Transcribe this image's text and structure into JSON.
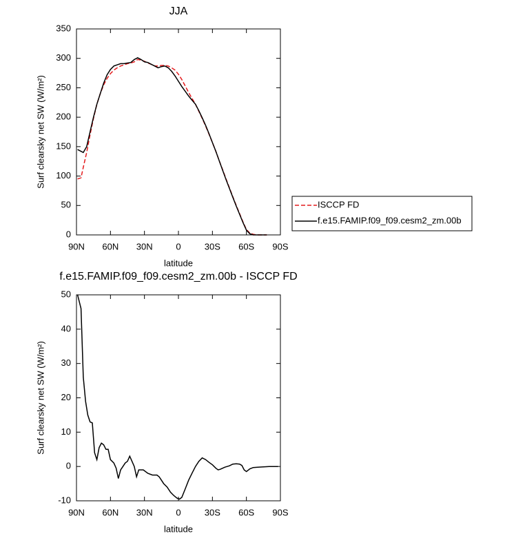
{
  "chart_data": [
    {
      "type": "line",
      "title": "JJA",
      "xlabel": "latitude",
      "ylabel": "Surf clearsky net SW (W/m²)",
      "x": [
        89,
        86,
        84,
        81,
        78,
        75,
        72,
        69,
        66,
        63,
        60,
        57,
        54,
        51,
        48,
        45,
        42,
        39,
        36,
        33,
        30,
        27,
        24,
        21,
        18,
        15,
        12,
        9,
        6,
        3,
        0,
        -3,
        -6,
        -9,
        -12,
        -15,
        -18,
        -21,
        -24,
        -27,
        -30,
        -33,
        -36,
        -39,
        -42,
        -45,
        -48,
        -51,
        -54,
        -57,
        -60,
        -63,
        -66,
        -69,
        -72,
        -75,
        -78
      ],
      "series": [
        {
          "name": "ISCCP FD",
          "color": "#e41a1c",
          "dash": "dashed",
          "values": [
            95,
            97,
            115,
            140,
            170,
            198,
            222,
            240,
            255,
            266,
            274,
            280,
            284,
            287,
            289,
            291,
            292,
            294,
            298,
            297,
            295,
            292,
            290,
            287,
            287,
            288,
            288,
            287,
            284,
            280,
            273,
            264,
            253,
            242,
            232,
            222,
            210,
            198,
            185,
            171,
            157,
            142,
            126,
            111,
            95,
            80,
            65,
            50,
            36,
            22,
            9,
            3,
            1,
            0,
            0,
            0,
            0
          ]
        },
        {
          "name": "f.e15.FAMIP.f09_f09.cesm2_zm.00b",
          "color": "#000000",
          "dash": "solid",
          "values": [
            145,
            142,
            140,
            150,
            175,
            200,
            222,
            240,
            258,
            272,
            281,
            287,
            289,
            291,
            291,
            292,
            293,
            298,
            301,
            298,
            294,
            293,
            290,
            287,
            284,
            286,
            287,
            284,
            278,
            270,
            261,
            252,
            244,
            236,
            229,
            222,
            211,
            199,
            186,
            172,
            157,
            142,
            126,
            110,
            94,
            79,
            64,
            49,
            35,
            21,
            8,
            2,
            0,
            0,
            0,
            0,
            0
          ]
        }
      ],
      "xlim": [
        90,
        -90
      ],
      "xticks": [
        {
          "value": 90,
          "label": "90N"
        },
        {
          "value": 60,
          "label": "60N"
        },
        {
          "value": 30,
          "label": "30N"
        },
        0,
        {
          "value": -30,
          "label": "30S"
        },
        {
          "value": -60,
          "label": "60S"
        },
        {
          "value": -90,
          "label": "90S"
        }
      ],
      "ylim": [
        0,
        350
      ],
      "yticks": [
        0,
        50,
        100,
        150,
        200,
        250,
        300,
        350
      ],
      "legend": "right"
    },
    {
      "type": "line",
      "title": "f.e15.FAMIP.f09_f09.cesm2_zm.00b - ISCCP FD",
      "xlabel": "latitude",
      "ylabel": "Surf clearsky net SW (W/m²)",
      "x": [
        89,
        86,
        84,
        82,
        80,
        78,
        76,
        74,
        72,
        70,
        68,
        66,
        64,
        62,
        60,
        57,
        55,
        53,
        51,
        49,
        47,
        45,
        43,
        41,
        39,
        37,
        35,
        31,
        27,
        23,
        19,
        17,
        15,
        13,
        10,
        7,
        4,
        1,
        -1,
        -3,
        -6,
        -9,
        -12,
        -15,
        -18,
        -21,
        -24,
        -27,
        -30,
        -33,
        -35,
        -37,
        -39,
        -41,
        -43,
        -45,
        -48,
        -51,
        -54,
        -56,
        -58,
        -60,
        -63,
        -66,
        -70,
        -75,
        -80,
        -88
      ],
      "series": [
        {
          "name": "f.e15.FAMIP.f09_f09.cesm2_zm.00b - ISCCP FD",
          "color": "#000000",
          "dash": "solid",
          "values": [
            50,
            46,
            26,
            19,
            15,
            13,
            12.7,
            4,
            2,
            5.5,
            6.8,
            6.3,
            5,
            5,
            2,
            1,
            -0.5,
            -3.5,
            -1,
            0,
            1,
            1.5,
            3,
            1.5,
            0,
            -3,
            -1,
            -1,
            -2,
            -2.5,
            -2.5,
            -3,
            -4,
            -5,
            -6,
            -7.5,
            -8.5,
            -9.3,
            -9.5,
            -9,
            -6.5,
            -4,
            -2,
            0,
            1.5,
            2.5,
            2,
            1.2,
            0.5,
            -0.5,
            -1,
            -0.8,
            -0.5,
            -0.2,
            0,
            0.2,
            0.7,
            0.8,
            0.7,
            0.3,
            -1,
            -1.5,
            -0.7,
            -0.3,
            -0.2,
            -0.1,
            0,
            0
          ]
        }
      ],
      "xlim": [
        90,
        -90
      ],
      "xticks": [
        {
          "value": 90,
          "label": "90N"
        },
        {
          "value": 60,
          "label": "60N"
        },
        {
          "value": 30,
          "label": "30N"
        },
        0,
        {
          "value": -30,
          "label": "30S"
        },
        {
          "value": -60,
          "label": "60S"
        },
        {
          "value": -90,
          "label": "90S"
        }
      ],
      "ylim": [
        -10,
        50
      ],
      "yticks": [
        -10,
        0,
        10,
        20,
        30,
        40,
        50
      ]
    }
  ]
}
